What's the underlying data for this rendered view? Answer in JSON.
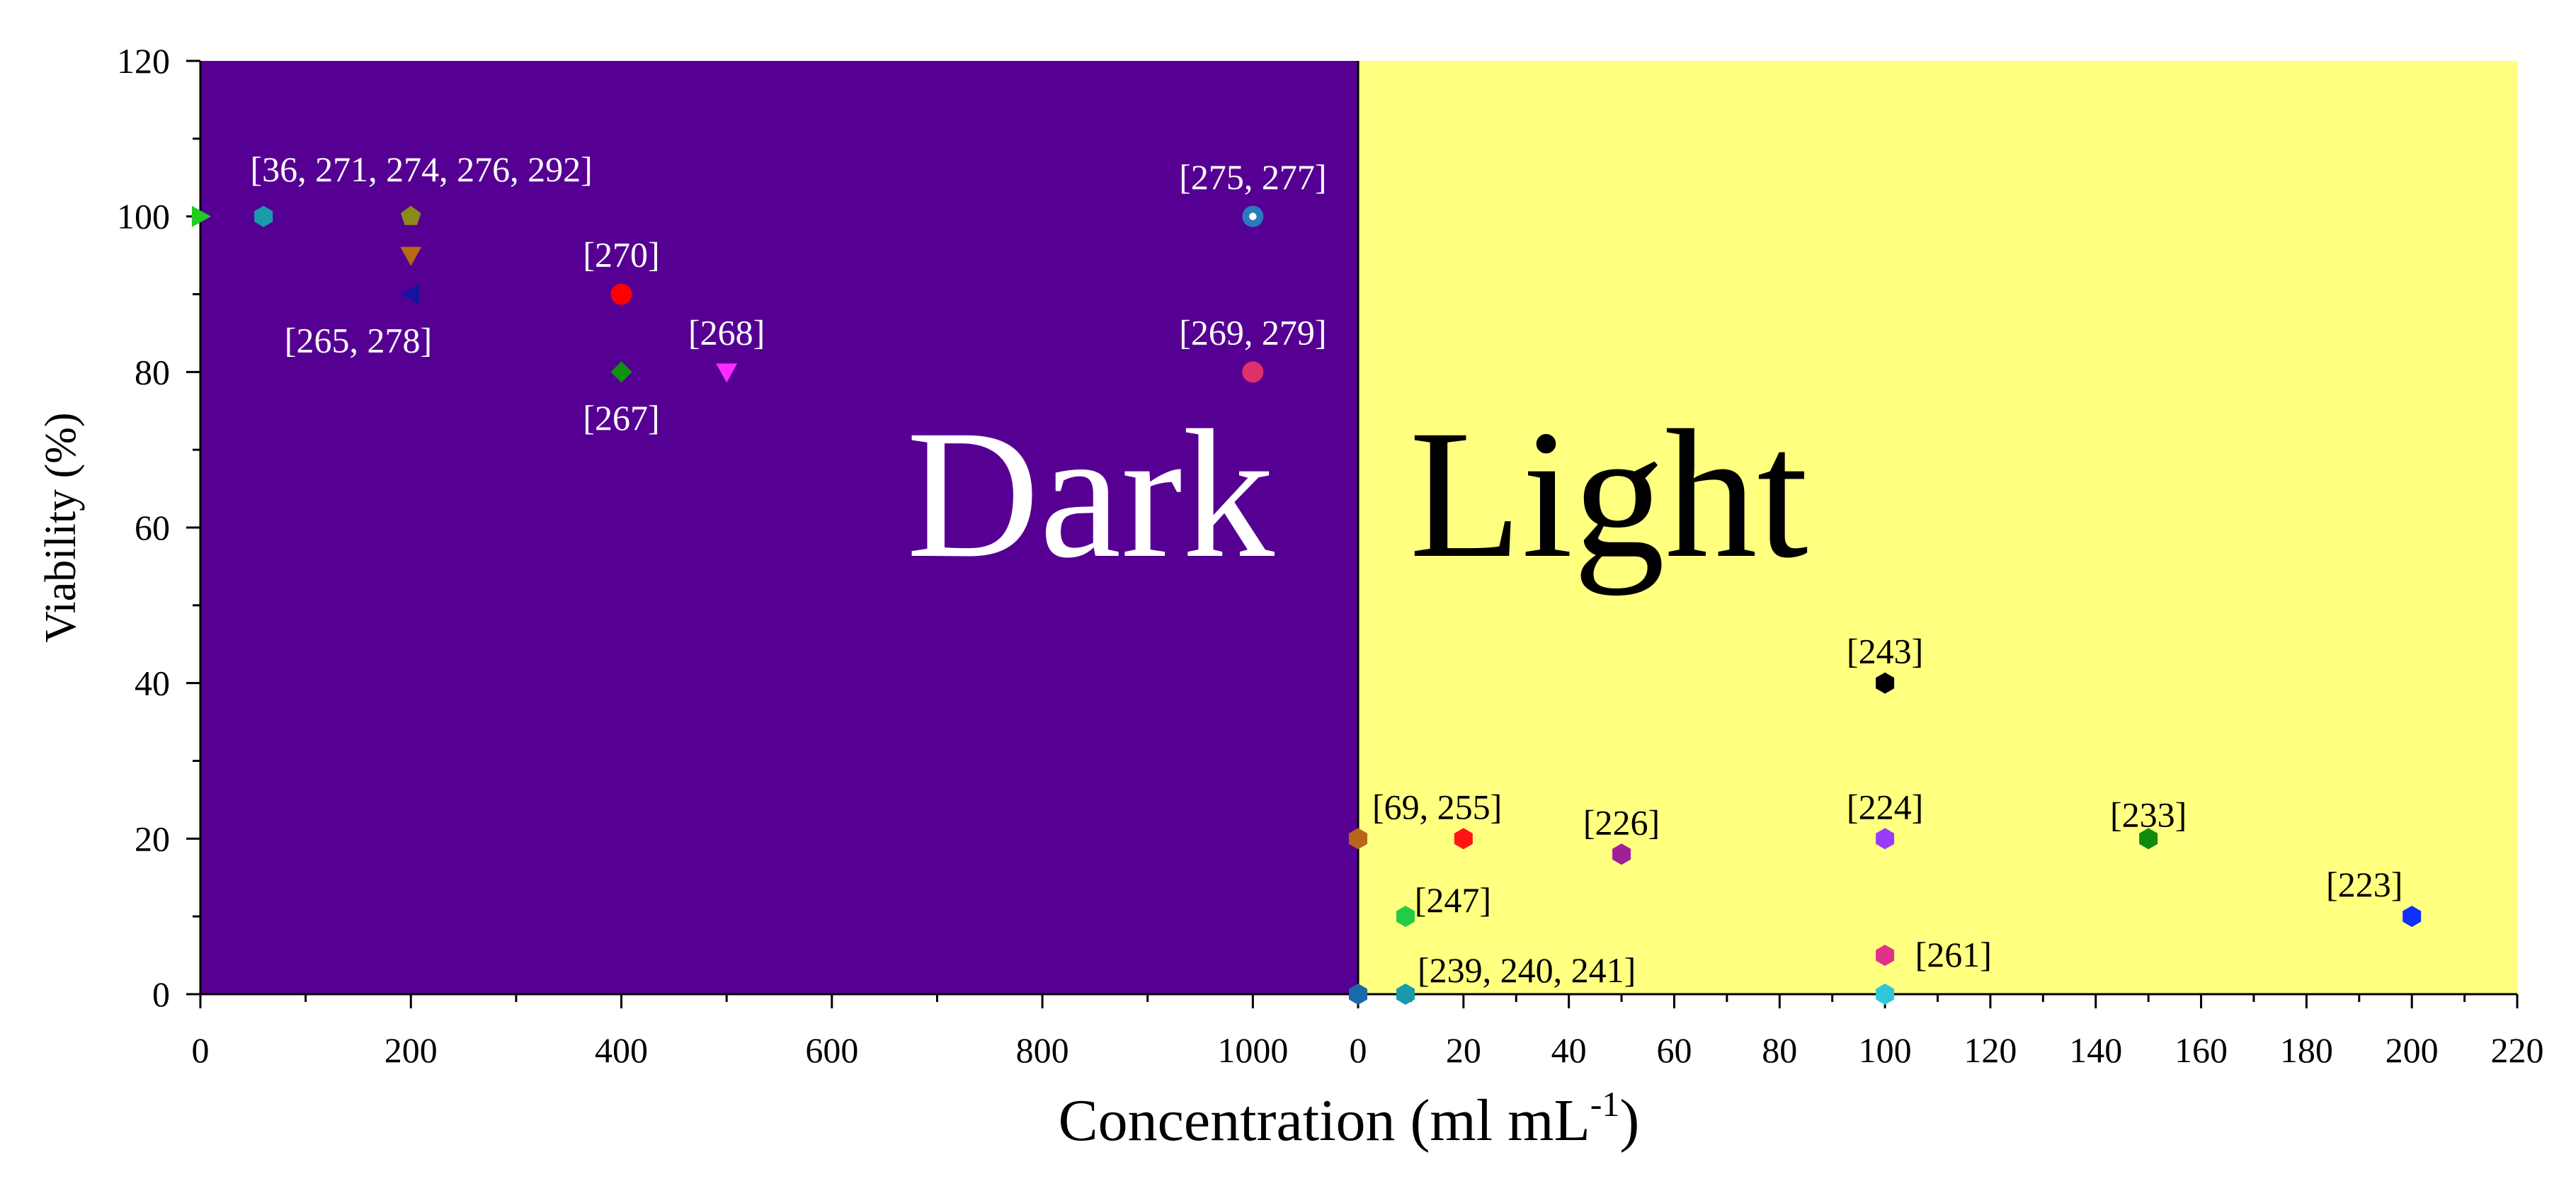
{
  "chart_data": {
    "type": "scatter",
    "title": "",
    "xlabel": "Concentration (ml mL",
    "xlabel_sup": "-1",
    "xlabel_close": ")",
    "ylabel": "Viability (%)",
    "ylim": [
      0,
      120
    ],
    "y_ticks": [
      "0",
      "20",
      "40",
      "60",
      "80",
      "100",
      "120"
    ],
    "grid": false,
    "legend": "none",
    "panels": [
      {
        "name": "Dark",
        "label": "Dark",
        "background": "#560093",
        "label_color": "#ffffff",
        "annotation_color": "#ffffff",
        "xlim": [
          0,
          1100
        ],
        "x_ticks": [
          "0",
          "200",
          "400",
          "600",
          "800",
          "1000"
        ],
        "points": [
          {
            "x": 0,
            "y": 100,
            "shape": "triangle-right",
            "color": "#22cc22"
          },
          {
            "x": 60,
            "y": 100,
            "shape": "hexagon",
            "color": "#1a9aaa"
          },
          {
            "x": 200,
            "y": 100,
            "shape": "pentagon",
            "color": "#8a8a1a"
          },
          {
            "x": 200,
            "y": 95,
            "shape": "triangle-down",
            "color": "#b86a12"
          },
          {
            "x": 200,
            "y": 90,
            "shape": "triangle-left",
            "color": "#1414a0"
          },
          {
            "x": 400,
            "y": 90,
            "shape": "circle",
            "color": "#ff0000"
          },
          {
            "x": 400,
            "y": 80,
            "shape": "diamond",
            "color": "#109010"
          },
          {
            "x": 500,
            "y": 80,
            "shape": "triangle-down",
            "color": "#ff2aff"
          },
          {
            "x": 1000,
            "y": 100,
            "shape": "circle-dot",
            "color": "#2a7ac0"
          },
          {
            "x": 1000,
            "y": 80,
            "shape": "circle",
            "color": "#e0306a"
          }
        ],
        "annotations": [
          {
            "text": "[36, 271, 274, 276, 292]",
            "x": 210,
            "y": 106
          },
          {
            "text": "[270]",
            "x": 400,
            "y": 95
          },
          {
            "text": "[265, 278]",
            "x": 150,
            "y": 84
          },
          {
            "text": "[268]",
            "x": 500,
            "y": 85
          },
          {
            "text": "[267]",
            "x": 400,
            "y": 74
          },
          {
            "text": "[275, 277]",
            "x": 1000,
            "y": 105
          },
          {
            "text": "[269, 279]",
            "x": 1000,
            "y": 85
          }
        ]
      },
      {
        "name": "Light",
        "label": "Light",
        "background": "#ffff80",
        "label_color": "#000000",
        "annotation_color": "#000000",
        "xlim": [
          0,
          220
        ],
        "x_ticks": [
          "0",
          "20",
          "40",
          "60",
          "80",
          "100",
          "120",
          "140",
          "160",
          "180",
          "200",
          "220"
        ],
        "points": [
          {
            "x": 0,
            "y": 20,
            "shape": "hexagon",
            "color": "#b8661a"
          },
          {
            "x": 20,
            "y": 20,
            "shape": "hexagon",
            "color": "#ff1414"
          },
          {
            "x": 50,
            "y": 18,
            "shape": "hexagon",
            "color": "#a0209a"
          },
          {
            "x": 100,
            "y": 40,
            "shape": "hexagon",
            "color": "#000000"
          },
          {
            "x": 100,
            "y": 20,
            "shape": "hexagon",
            "color": "#9a3aff"
          },
          {
            "x": 150,
            "y": 20,
            "shape": "hexagon",
            "color": "#108a10"
          },
          {
            "x": 200,
            "y": 10,
            "shape": "hexagon",
            "color": "#1030ff"
          },
          {
            "x": 9,
            "y": 10,
            "shape": "hexagon",
            "color": "#22cc44"
          },
          {
            "x": 100,
            "y": 5,
            "shape": "hexagon",
            "color": "#e0308a"
          },
          {
            "x": 0,
            "y": 0,
            "shape": "hexagon",
            "color": "#1a6aaa"
          },
          {
            "x": 9,
            "y": 0,
            "shape": "hexagon",
            "color": "#1a9aaa"
          },
          {
            "x": 100,
            "y": 0,
            "shape": "hexagon",
            "color": "#30c8d8"
          }
        ],
        "annotations": [
          {
            "text": "[69, 255]",
            "x": 15,
            "y": 24
          },
          {
            "text": "[226]",
            "x": 50,
            "y": 22
          },
          {
            "text": "[243]",
            "x": 100,
            "y": 44
          },
          {
            "text": "[224]",
            "x": 100,
            "y": 24
          },
          {
            "text": "[233]",
            "x": 150,
            "y": 23
          },
          {
            "text": "[223]",
            "x": 191,
            "y": 14
          },
          {
            "text": "[247]",
            "x": 18,
            "y": 12
          },
          {
            "text": "[261]",
            "x": 113,
            "y": 5
          },
          {
            "text": "[239, 240, 241]",
            "x": 32,
            "y": 3
          }
        ]
      }
    ]
  }
}
